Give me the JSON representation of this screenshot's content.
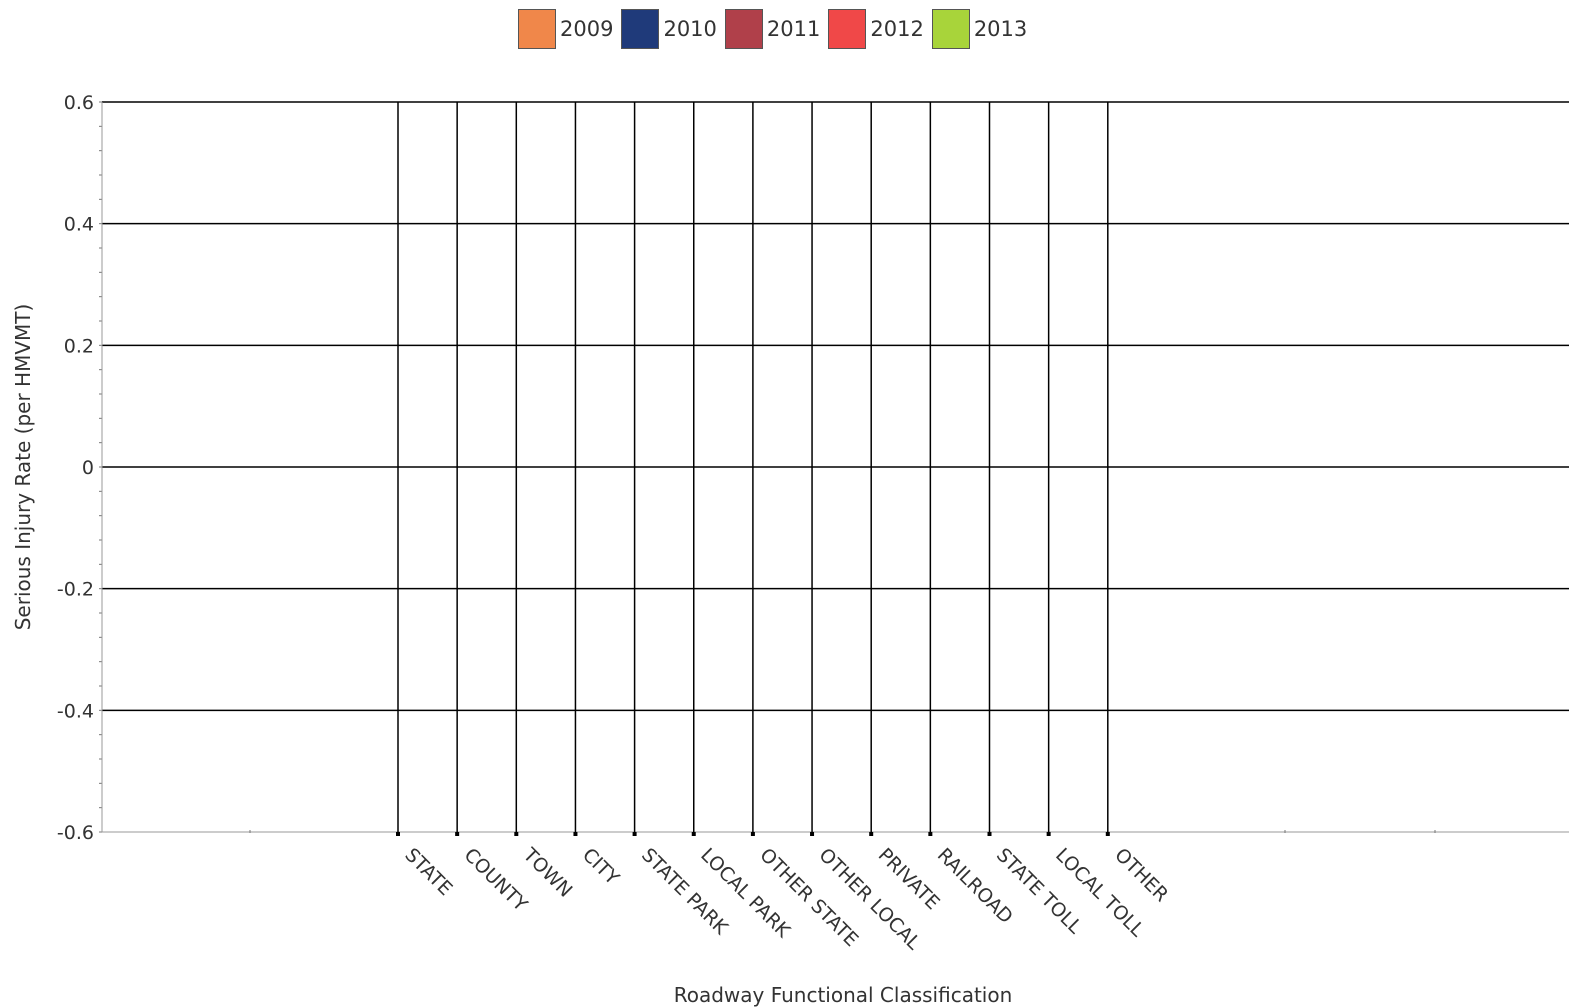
{
  "chart_data": {
    "type": "bar",
    "title": "",
    "xlabel": "Roadway Functional Classification",
    "ylabel": "Serious Injury Rate (per HMVMT)",
    "ylim": [
      -0.6,
      0.6
    ],
    "yticks": [
      "0.6",
      "0.4",
      "0.2",
      "0",
      "-0.2",
      "-0.4",
      "-0.6"
    ],
    "ytick_values": [
      0.6,
      0.4,
      0.2,
      0,
      -0.2,
      -0.4,
      -0.6
    ],
    "categories": [
      "STATE",
      "COUNTY",
      "TOWN",
      "CITY",
      "STATE PARK",
      "LOCAL PARK",
      "OTHER STATE",
      "OTHER LOCAL",
      "PRIVATE",
      "RAILROAD",
      "STATE TOLL",
      "LOCAL TOLL",
      "OTHER"
    ],
    "series": [
      {
        "name": "2009",
        "color": "#F0874A",
        "values": [
          null,
          null,
          null,
          null,
          null,
          null,
          null,
          null,
          null,
          null,
          null,
          null,
          null
        ]
      },
      {
        "name": "2010",
        "color": "#1F3A7A",
        "values": [
          null,
          null,
          null,
          null,
          null,
          null,
          null,
          null,
          null,
          null,
          null,
          null,
          null
        ]
      },
      {
        "name": "2011",
        "color": "#B0404A",
        "values": [
          null,
          null,
          null,
          null,
          null,
          null,
          null,
          null,
          null,
          null,
          null,
          null,
          null
        ]
      },
      {
        "name": "2012",
        "color": "#F04848",
        "values": [
          null,
          null,
          null,
          null,
          null,
          null,
          null,
          null,
          null,
          null,
          null,
          null,
          null
        ]
      },
      {
        "name": "2013",
        "color": "#A8D43A",
        "values": [
          null,
          null,
          null,
          null,
          null,
          null,
          null,
          null,
          null,
          null,
          null,
          null,
          null
        ]
      }
    ],
    "grid": true,
    "legend_position": "top"
  }
}
